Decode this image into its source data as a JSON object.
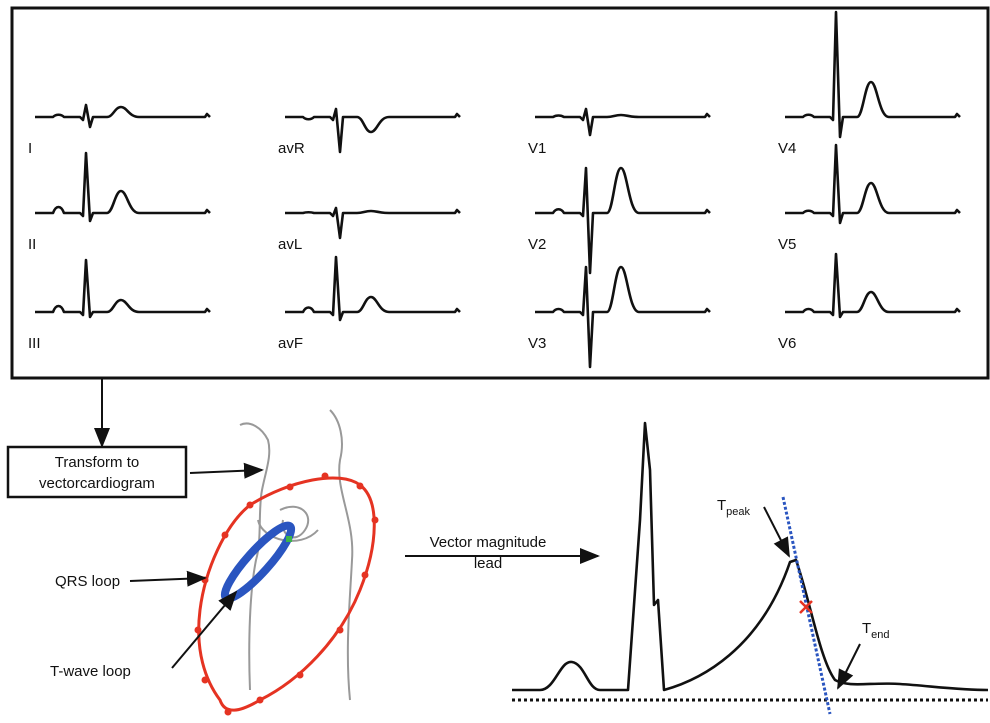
{
  "ecg_panel": {
    "leads": [
      {
        "label": "I"
      },
      {
        "label": "avR"
      },
      {
        "label": "V1"
      },
      {
        "label": "V4"
      },
      {
        "label": "II"
      },
      {
        "label": "avL"
      },
      {
        "label": "V2"
      },
      {
        "label": "V5"
      },
      {
        "label": "III"
      },
      {
        "label": "avF"
      },
      {
        "label": "V3"
      },
      {
        "label": "V6"
      }
    ]
  },
  "transform_box": {
    "lines": [
      "Transform to",
      "vectorcardiogram"
    ]
  },
  "vectorcardiogram": {
    "qrs_label": "QRS loop",
    "t_wave_label": "T-wave loop"
  },
  "vector_magnitude": {
    "label_lines": [
      "Vector magnitude",
      "lead"
    ],
    "t_peak": {
      "main": "T",
      "sub": "peak"
    },
    "t_end": {
      "main": "T",
      "sub": "end"
    }
  }
}
